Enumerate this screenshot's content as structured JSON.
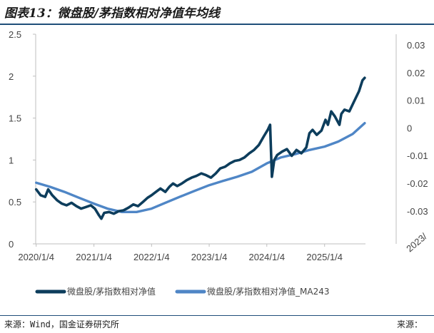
{
  "header": {
    "title": "图表13：微盘股/茅指数相对净值年均线"
  },
  "footer": {
    "source_left": "来源：Wind，国金证券研究所",
    "source_right": "来源："
  },
  "colors": {
    "series1": "#0d3d5c",
    "series2": "#4f86c6",
    "axis": "#bfbfbf",
    "rule": "#1f4e79"
  },
  "chart_data": {
    "type": "line",
    "title": "图表13：微盘股/茅指数相对净值年均线",
    "xlabel": "",
    "ylabel": "",
    "xlim": [
      "2020-01-01",
      "2025-09-20"
    ],
    "ylim": [
      0,
      2.5
    ],
    "yticks": [
      "0",
      "0.5",
      "1",
      "1.5",
      "2",
      "2.5"
    ],
    "xticks": [
      "2020/1/4",
      "2021/1/4",
      "2022/1/4",
      "2023/1/4",
      "2024/1/4",
      "2025/1/4"
    ],
    "right_axis": {
      "ticks": [
        "0.03",
        "0.02",
        "0.01",
        "0",
        "-0.01",
        "-0.02",
        "-0.03"
      ],
      "partial_label": "2023/"
    },
    "grid": false,
    "legend_position": "bottom",
    "series": [
      {
        "name": "微盘股/茅指数相对净值",
        "x": [
          "2020-01-04",
          "2020-02-01",
          "2020-03-01",
          "2020-03-20",
          "2020-04-15",
          "2020-05-15",
          "2020-06-15",
          "2020-07-15",
          "2020-08-15",
          "2020-09-15",
          "2020-10-15",
          "2020-11-15",
          "2020-12-15",
          "2021-01-10",
          "2021-02-05",
          "2021-02-20",
          "2021-03-10",
          "2021-04-10",
          "2021-05-10",
          "2021-06-10",
          "2021-07-10",
          "2021-08-10",
          "2021-09-10",
          "2021-10-10",
          "2021-11-10",
          "2021-12-10",
          "2022-01-04",
          "2022-02-01",
          "2022-03-01",
          "2022-04-01",
          "2022-04-27",
          "2022-05-20",
          "2022-06-15",
          "2022-07-15",
          "2022-08-15",
          "2022-09-15",
          "2022-10-15",
          "2022-11-15",
          "2022-12-15",
          "2023-01-15",
          "2023-02-15",
          "2023-03-15",
          "2023-04-15",
          "2023-05-15",
          "2023-06-15",
          "2023-07-15",
          "2023-08-15",
          "2023-09-15",
          "2023-10-15",
          "2023-11-15",
          "2023-12-15",
          "2024-01-10",
          "2024-01-25",
          "2024-02-05",
          "2024-02-20",
          "2024-03-10",
          "2024-04-10",
          "2024-05-10",
          "2024-06-10",
          "2024-07-10",
          "2024-08-10",
          "2024-09-10",
          "2024-09-30",
          "2024-10-20",
          "2024-11-15",
          "2024-12-15",
          "2025-01-10",
          "2025-01-25",
          "2025-02-15",
          "2025-03-10",
          "2025-04-08",
          "2025-04-20",
          "2025-05-10",
          "2025-06-10",
          "2025-07-10",
          "2025-08-10",
          "2025-09-01",
          "2025-09-15"
        ],
        "values": [
          0.65,
          0.58,
          0.56,
          0.65,
          0.58,
          0.52,
          0.48,
          0.46,
          0.49,
          0.45,
          0.42,
          0.44,
          0.46,
          0.42,
          0.34,
          0.3,
          0.37,
          0.38,
          0.36,
          0.39,
          0.4,
          0.43,
          0.47,
          0.45,
          0.5,
          0.55,
          0.58,
          0.62,
          0.66,
          0.62,
          0.68,
          0.72,
          0.69,
          0.72,
          0.76,
          0.79,
          0.81,
          0.84,
          0.82,
          0.79,
          0.84,
          0.9,
          0.92,
          0.96,
          0.99,
          1.0,
          1.03,
          1.08,
          1.12,
          1.18,
          1.28,
          1.36,
          1.42,
          0.8,
          1.0,
          1.06,
          1.1,
          1.13,
          1.05,
          1.12,
          1.08,
          1.15,
          1.32,
          1.36,
          1.3,
          1.35,
          1.48,
          1.42,
          1.58,
          1.52,
          1.42,
          1.55,
          1.6,
          1.58,
          1.7,
          1.82,
          1.95,
          1.98
        ]
      },
      {
        "name": "微盘股/茅指数相对净值_MA243",
        "x": [
          "2020-01-04",
          "2020-04-01",
          "2020-07-01",
          "2020-10-01",
          "2021-01-04",
          "2021-04-01",
          "2021-07-01",
          "2021-10-01",
          "2022-01-04",
          "2022-04-01",
          "2022-07-01",
          "2022-10-01",
          "2023-01-04",
          "2023-04-01",
          "2023-07-01",
          "2023-10-01",
          "2024-01-04",
          "2024-04-01",
          "2024-07-01",
          "2024-10-01",
          "2025-01-04",
          "2025-04-01",
          "2025-07-01",
          "2025-09-15"
        ],
        "values": [
          0.73,
          0.68,
          0.62,
          0.55,
          0.48,
          0.42,
          0.38,
          0.38,
          0.42,
          0.49,
          0.56,
          0.63,
          0.7,
          0.75,
          0.8,
          0.86,
          0.96,
          1.03,
          1.07,
          1.12,
          1.16,
          1.22,
          1.31,
          1.44
        ]
      }
    ]
  }
}
